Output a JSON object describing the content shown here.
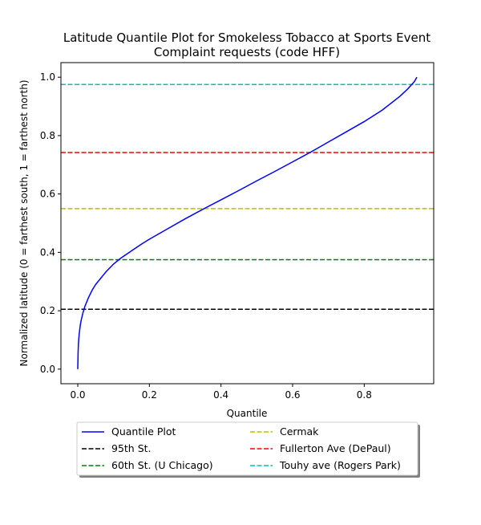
{
  "chart_data": {
    "type": "line",
    "title": [
      "Latitude Quantile Plot for Smokeless Tobacco at Sports Event",
      "Complaint  requests (code HFF)"
    ],
    "xlabel": "Quantile",
    "ylabel": "Normalized latitude (0 = farthest south, 1 = farthest north)",
    "xlim": [
      -0.047,
      0.994
    ],
    "ylim": [
      -0.05,
      1.05
    ],
    "xticks": [
      0.0,
      0.2,
      0.4,
      0.6,
      0.8
    ],
    "xtick_labels": [
      "0.0",
      "0.2",
      "0.4",
      "0.6",
      "0.8"
    ],
    "yticks": [
      0.0,
      0.2,
      0.4,
      0.6,
      0.8,
      1.0
    ],
    "ytick_labels": [
      "0.0",
      "0.2",
      "0.4",
      "0.6",
      "0.8",
      "1.0"
    ],
    "grid": false,
    "legend_position": "below plot, two columns",
    "series": [
      {
        "name": "Quantile Plot",
        "color": "#0000ff",
        "style": "solid",
        "x": [
          0.0,
          0.001,
          0.002,
          0.004,
          0.007,
          0.01,
          0.015,
          0.02,
          0.03,
          0.04,
          0.05,
          0.06,
          0.08,
          0.1,
          0.12,
          0.15,
          0.18,
          0.2,
          0.25,
          0.3,
          0.35,
          0.4,
          0.45,
          0.5,
          0.55,
          0.6,
          0.65,
          0.7,
          0.75,
          0.8,
          0.85,
          0.9,
          0.92,
          0.94,
          0.947
        ],
        "y": [
          0.0,
          0.06,
          0.09,
          0.12,
          0.15,
          0.17,
          0.195,
          0.215,
          0.245,
          0.27,
          0.29,
          0.305,
          0.335,
          0.36,
          0.38,
          0.405,
          0.43,
          0.445,
          0.48,
          0.515,
          0.548,
          0.58,
          0.612,
          0.645,
          0.677,
          0.71,
          0.743,
          0.778,
          0.813,
          0.848,
          0.887,
          0.935,
          0.958,
          0.985,
          1.0
        ]
      }
    ],
    "hlines": [
      {
        "name": "95th St.",
        "y": 0.205,
        "color": "#000000"
      },
      {
        "name": "60th St. (U Chicago)",
        "y": 0.375,
        "color": "#008000"
      },
      {
        "name": "Cermak",
        "y": 0.55,
        "color": "#bfbf00"
      },
      {
        "name": "Fullerton Ave (DePaul)",
        "y": 0.742,
        "color": "#ff0000"
      },
      {
        "name": "Touhy ave (Rogers Park)",
        "y": 0.975,
        "color": "#00bfbf"
      }
    ],
    "legend_order": [
      {
        "name": "Quantile Plot",
        "color": "#0000ff",
        "style": "solid"
      },
      {
        "name": "95th St.",
        "color": "#000000",
        "style": "dashed"
      },
      {
        "name": "60th St. (U Chicago)",
        "color": "#008000",
        "style": "dashed"
      },
      {
        "name": "Cermak",
        "color": "#bfbf00",
        "style": "dashed"
      },
      {
        "name": "Fullerton Ave (DePaul)",
        "color": "#ff0000",
        "style": "dashed"
      },
      {
        "name": "Touhy ave (Rogers Park)",
        "color": "#00bfbf",
        "style": "dashed"
      }
    ]
  }
}
